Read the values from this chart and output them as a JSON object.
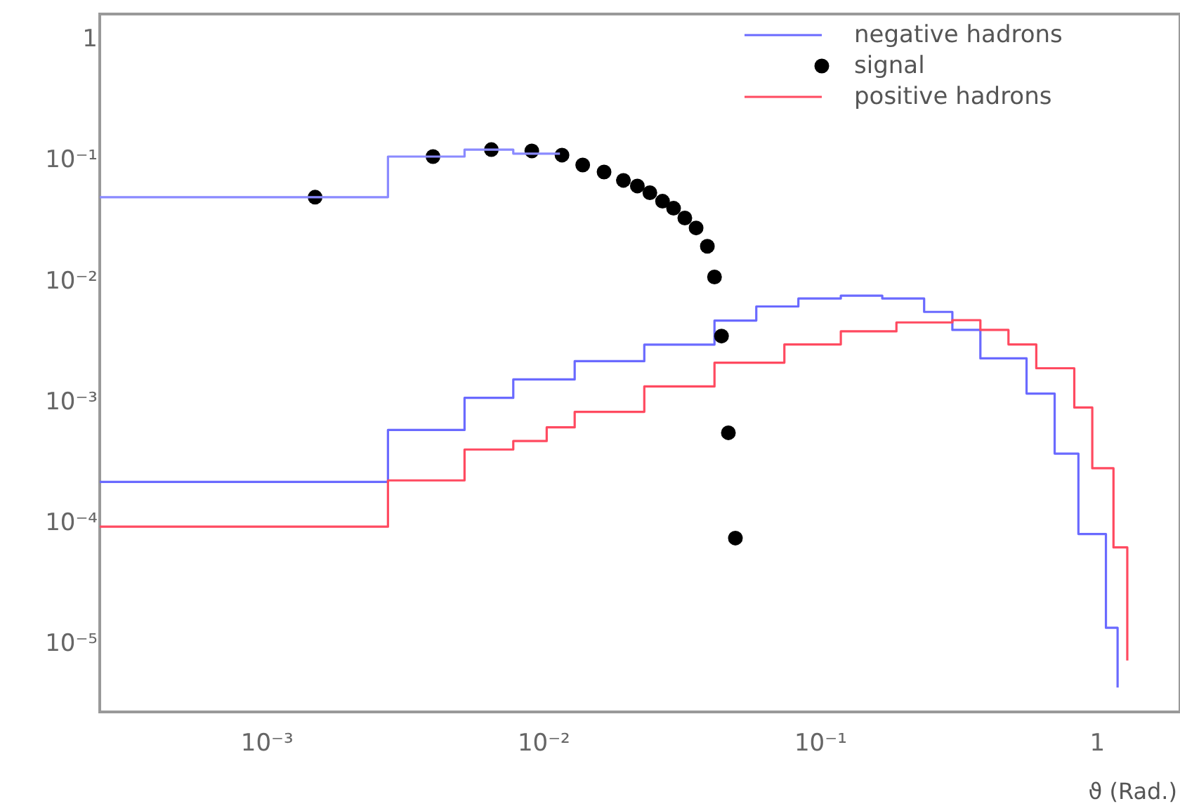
{
  "chart_data": {
    "type": "step",
    "xlabel": "ϑ (Rad.)",
    "log": "xy",
    "xlim": [
      0.00025,
      2
    ],
    "ylim": [
      2.7e-06,
      1.6
    ],
    "xticks": [
      {
        "value": 0.001,
        "label": "10⁻³"
      },
      {
        "value": 0.01,
        "label": "10⁻²"
      },
      {
        "value": 0.1,
        "label": "10⁻¹"
      },
      1
    ],
    "yticks": [
      {
        "value": 1e-05,
        "label": "10⁻⁵"
      },
      {
        "value": 0.0001,
        "label": "10⁻⁴"
      },
      {
        "value": 0.001,
        "label": "10⁻³"
      },
      {
        "value": 0.01,
        "label": "10⁻²"
      },
      {
        "value": 0.1,
        "label": "10⁻¹"
      },
      1
    ],
    "legend": "top right",
    "grid": false,
    "series": [
      {
        "name": "negative hadrons",
        "color": "#6a6aff",
        "x": [
          0.00025,
          0.00275,
          0.0052,
          0.0078,
          0.013,
          0.0146,
          0.0232,
          0.0416,
          0.0589,
          0.0836,
          0.119,
          0.168,
          0.238,
          0.301,
          0.38,
          0.558,
          0.705,
          0.859,
          1.08,
          1.19
        ],
        "values": [
          0.000216,
          0.00058,
          0.00107,
          0.00152,
          0.00215,
          0.00215,
          0.00295,
          0.00466,
          0.0061,
          0.0071,
          0.0075,
          0.0071,
          0.0055,
          0.0039,
          0.00227,
          0.00116,
          0.00037,
          8e-05,
          1.34e-05,
          4.3e-06
        ]
      },
      {
        "name": "signal",
        "color": "#000000",
        "type": "scatter",
        "marker": "circle",
        "x": [
          0.0015,
          0.004,
          0.0065,
          0.0091,
          0.0117,
          0.0139,
          0.0166,
          0.0195,
          0.0219,
          0.0243,
          0.027,
          0.0296,
          0.0325,
          0.0357,
          0.0392,
          0.0416,
          0.0441,
          0.0467,
          0.0495
        ],
        "values": [
          0.0489,
          0.106,
          0.121,
          0.118,
          0.109,
          0.0903,
          0.079,
          0.0673,
          0.0605,
          0.0532,
          0.0453,
          0.0396,
          0.0329,
          0.0272,
          0.0192,
          0.0107,
          0.00347,
          0.00055,
          7.4e-05
        ]
      },
      {
        "color": "#8a8aff",
        "x": [
          0.00025,
          0.00275,
          0.0052,
          0.0078,
          0.0115
        ],
        "values": [
          0.0489,
          0.106,
          0.121,
          0.112,
          0.112
        ]
      },
      {
        "name": "positive hadrons",
        "color": "#ff4a60",
        "x": [
          0.00025,
          0.00275,
          0.0052,
          0.0078,
          0.0103,
          0.013,
          0.0232,
          0.0416,
          0.0744,
          0.119,
          0.189,
          0.301,
          0.38,
          0.48,
          0.605,
          0.83,
          0.964,
          1.15,
          1.29
        ],
        "values": [
          9.2e-05,
          0.000222,
          0.0004,
          0.00047,
          0.00061,
          0.00082,
          0.00133,
          0.00209,
          0.00296,
          0.0038,
          0.0045,
          0.0047,
          0.0039,
          0.00296,
          0.00188,
          0.00089,
          0.00028,
          6.2e-05,
          7.2e-06
        ]
      }
    ]
  }
}
